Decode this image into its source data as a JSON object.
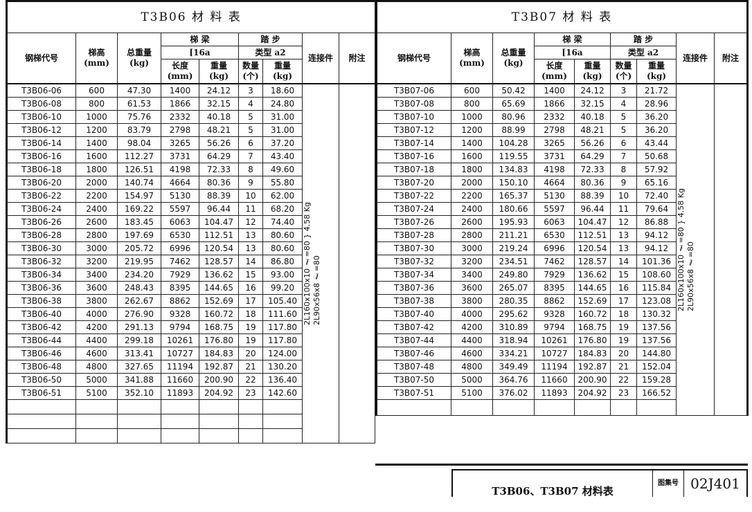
{
  "headers": {
    "code": "钢梯代号",
    "height": "梯高",
    "height_unit": "(mm)",
    "total": "总重量",
    "total_unit": "(kg)",
    "beam": "梯 梁",
    "beam_spec": "[16a",
    "length": "长度",
    "length_unit": "(mm)",
    "weight": "重量",
    "weight_unit": "(kg)",
    "tread": "踏 步",
    "tread_spec": "类型 a2",
    "count": "数量",
    "count_unit": "(个)",
    "connector": "连接件",
    "note": "附注"
  },
  "left": {
    "title": "T3B06  材 料 表",
    "connector_line1": "2L160x100x10  ℓ=80 } 4.58 Kg",
    "connector_line2": "2L90x56x8  ℓ=80",
    "rows": [
      [
        "T3B06-06",
        "600",
        "47.30",
        "1400",
        "24.12",
        "3",
        "18.60"
      ],
      [
        "T3B06-08",
        "800",
        "61.53",
        "1866",
        "32.15",
        "4",
        "24.80"
      ],
      [
        "T3B06-10",
        "1000",
        "75.76",
        "2332",
        "40.18",
        "5",
        "31.00"
      ],
      [
        "T3B06-12",
        "1200",
        "83.79",
        "2798",
        "48.21",
        "5",
        "31.00"
      ],
      [
        "T3B06-14",
        "1400",
        "98.04",
        "3265",
        "56.26",
        "6",
        "37.20"
      ],
      [
        "T3B06-16",
        "1600",
        "112.27",
        "3731",
        "64.29",
        "7",
        "43.40"
      ],
      [
        "T3B06-18",
        "1800",
        "126.51",
        "4198",
        "72.33",
        "8",
        "49.60"
      ],
      [
        "T3B06-20",
        "2000",
        "140.74",
        "4664",
        "80.36",
        "9",
        "55.80"
      ],
      [
        "T3B06-22",
        "2200",
        "154.97",
        "5130",
        "88.39",
        "10",
        "62.00"
      ],
      [
        "T3B06-24",
        "2400",
        "169.22",
        "5597",
        "96.44",
        "11",
        "68.20"
      ],
      [
        "T3B06-26",
        "2600",
        "183.45",
        "6063",
        "104.47",
        "12",
        "74.40"
      ],
      [
        "T3B06-28",
        "2800",
        "197.69",
        "6530",
        "112.51",
        "13",
        "80.60"
      ],
      [
        "T3B06-30",
        "3000",
        "205.72",
        "6996",
        "120.54",
        "13",
        "80.60"
      ],
      [
        "T3B06-32",
        "3200",
        "219.95",
        "7462",
        "128.57",
        "14",
        "86.80"
      ],
      [
        "T3B06-34",
        "3400",
        "234.20",
        "7929",
        "136.62",
        "15",
        "93.00"
      ],
      [
        "T3B06-36",
        "3600",
        "248.43",
        "8395",
        "144.65",
        "16",
        "99.20"
      ],
      [
        "T3B06-38",
        "3800",
        "262.67",
        "8862",
        "152.69",
        "17",
        "105.40"
      ],
      [
        "T3B06-40",
        "4000",
        "276.90",
        "9328",
        "160.72",
        "18",
        "111.60"
      ],
      [
        "T3B06-42",
        "4200",
        "291.13",
        "9794",
        "168.75",
        "19",
        "117.80"
      ],
      [
        "T3B06-44",
        "4400",
        "299.18",
        "10261",
        "176.80",
        "19",
        "117.80"
      ],
      [
        "T3B06-46",
        "4600",
        "313.41",
        "10727",
        "184.83",
        "20",
        "124.00"
      ],
      [
        "T3B06-48",
        "4800",
        "327.65",
        "11194",
        "192.87",
        "21",
        "130.20"
      ],
      [
        "T3B06-50",
        "5000",
        "341.88",
        "11660",
        "200.90",
        "22",
        "136.40"
      ],
      [
        "T3B06-51",
        "5100",
        "352.10",
        "11893",
        "204.92",
        "23",
        "142.60"
      ]
    ]
  },
  "right": {
    "title": "T3B07  材 料 表",
    "connector_line1": "2L160x100x10  ℓ=80 } 4.58 Kg",
    "connector_line2": "2L90x56x8  ℓ=80",
    "rows": [
      [
        "T3B07-06",
        "600",
        "50.42",
        "1400",
        "24.12",
        "3",
        "21.72"
      ],
      [
        "T3B07-08",
        "800",
        "65.69",
        "1866",
        "32.15",
        "4",
        "28.96"
      ],
      [
        "T3B07-10",
        "1000",
        "80.96",
        "2332",
        "40.18",
        "5",
        "36.20"
      ],
      [
        "T3B07-12",
        "1200",
        "88.99",
        "2798",
        "48.21",
        "5",
        "36.20"
      ],
      [
        "T3B07-14",
        "1400",
        "104.28",
        "3265",
        "56.26",
        "6",
        "43.44"
      ],
      [
        "T3B07-16",
        "1600",
        "119.55",
        "3731",
        "64.29",
        "7",
        "50.68"
      ],
      [
        "T3B07-18",
        "1800",
        "134.83",
        "4198",
        "72.33",
        "8",
        "57.92"
      ],
      [
        "T3B07-20",
        "2000",
        "150.10",
        "4664",
        "80.36",
        "9",
        "65.16"
      ],
      [
        "T3B07-22",
        "2200",
        "165.37",
        "5130",
        "88.39",
        "10",
        "72.40"
      ],
      [
        "T3B07-24",
        "2400",
        "180.66",
        "5597",
        "96.44",
        "11",
        "79.64"
      ],
      [
        "T3B07-26",
        "2600",
        "195.93",
        "6063",
        "104.47",
        "12",
        "86.88"
      ],
      [
        "T3B07-28",
        "2800",
        "211.21",
        "6530",
        "112.51",
        "13",
        "94.12"
      ],
      [
        "T3B07-30",
        "3000",
        "219.24",
        "6996",
        "120.54",
        "13",
        "94.12"
      ],
      [
        "T3B07-32",
        "3200",
        "234.51",
        "7462",
        "128.57",
        "14",
        "101.36"
      ],
      [
        "T3B07-34",
        "3400",
        "249.80",
        "7929",
        "136.62",
        "15",
        "108.60"
      ],
      [
        "T3B07-36",
        "3600",
        "265.07",
        "8395",
        "144.65",
        "16",
        "115.84"
      ],
      [
        "T3B07-38",
        "3800",
        "280.35",
        "8862",
        "152.69",
        "17",
        "123.08"
      ],
      [
        "T3B07-40",
        "4000",
        "295.62",
        "9328",
        "160.72",
        "18",
        "130.32"
      ],
      [
        "T3B07-42",
        "4200",
        "310.89",
        "9794",
        "168.75",
        "19",
        "137.56"
      ],
      [
        "T3B07-44",
        "4400",
        "318.94",
        "10261",
        "176.80",
        "19",
        "137.56"
      ],
      [
        "T3B07-46",
        "4600",
        "334.21",
        "10727",
        "184.83",
        "20",
        "144.80"
      ],
      [
        "T3B07-48",
        "4800",
        "349.49",
        "11194",
        "192.87",
        "21",
        "152.04"
      ],
      [
        "T3B07-50",
        "5000",
        "364.76",
        "11660",
        "200.90",
        "22",
        "159.28"
      ],
      [
        "T3B07-51",
        "5100",
        "376.02",
        "11893",
        "204.92",
        "23",
        "166.52"
      ]
    ]
  },
  "title_block": {
    "title": "T3B06、T3B07 材料表",
    "label": "图集号",
    "number": "02J401"
  }
}
